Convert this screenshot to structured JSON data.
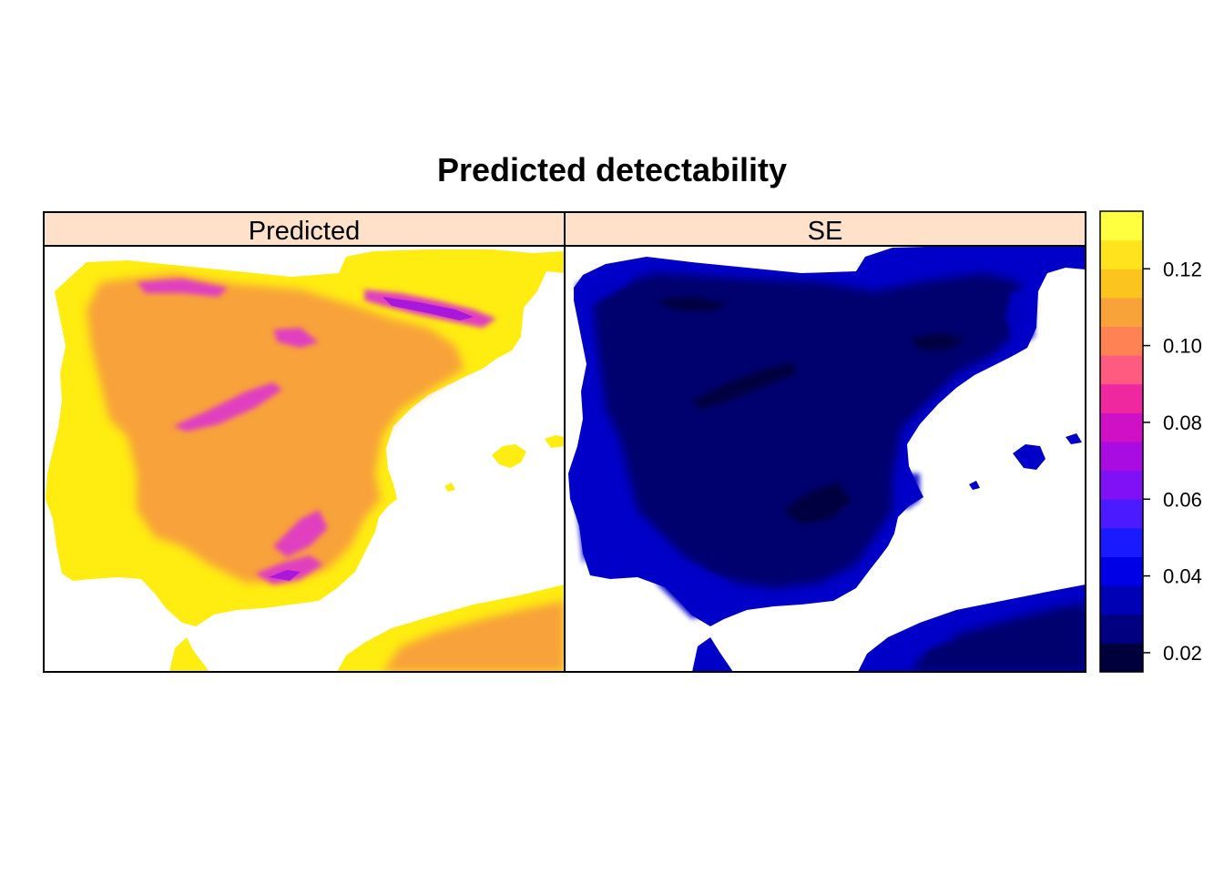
{
  "figure": {
    "title": "Predicted detectability",
    "panels": [
      {
        "strip_label": "Predicted",
        "strip_color": "#FFE0C8",
        "sea_color": "#FFFFFF"
      },
      {
        "strip_label": "SE",
        "strip_color": "#FFE0C8",
        "sea_color": "#FFFFFF"
      }
    ]
  },
  "legend": {
    "type": "colorkey",
    "range": [
      0.015,
      0.135
    ],
    "ticks": [
      "0.02",
      "0.04",
      "0.06",
      "0.08",
      "0.10",
      "0.12"
    ],
    "tick_values": [
      0.02,
      0.04,
      0.06,
      0.08,
      0.1,
      0.12
    ],
    "colors": [
      "#00003C",
      "#000080",
      "#0000B4",
      "#0000E6",
      "#1A1AFF",
      "#4B1AFF",
      "#8010F5",
      "#A80CE0",
      "#D010C4",
      "#F028A0",
      "#FF5A80",
      "#FF8255",
      "#F8A23A",
      "#FCC41F",
      "#FFE31C",
      "#FFFF40"
    ]
  },
  "colors": {
    "predicted_low": "#FFEC10",
    "predicted_mid": "#F8A23A",
    "predicted_high": "#E040C0",
    "predicted_peak": "#A010E0",
    "se_base": "#00006E",
    "se_dark": "#000040",
    "se_light": "#0000C8"
  }
}
